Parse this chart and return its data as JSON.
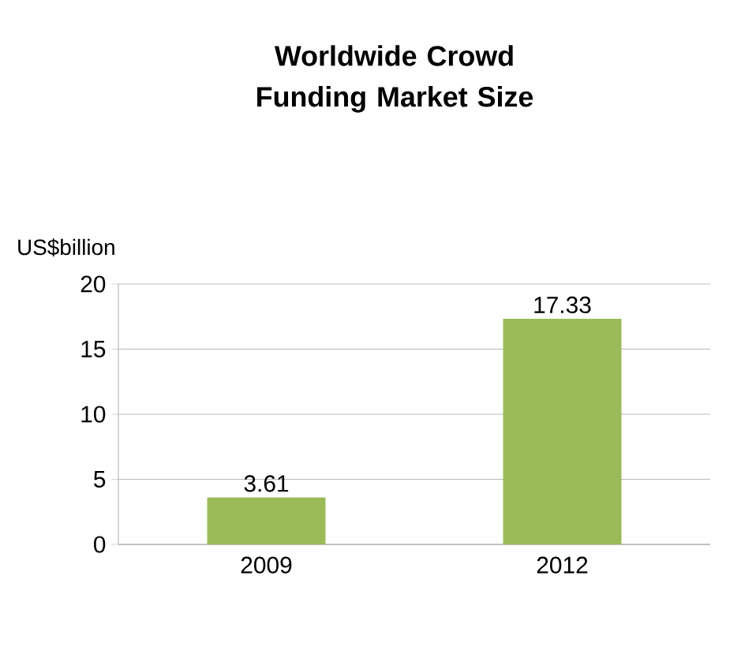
{
  "chart_data": {
    "type": "bar",
    "title": "Worldwide Crowd Funding Market Size",
    "ylabel": "US$billion",
    "categories": [
      "2009",
      "2012"
    ],
    "values": [
      3.61,
      17.33
    ],
    "color": "#9bbb59",
    "ylim": [
      0,
      20
    ],
    "yticks": [
      0,
      5,
      10,
      15,
      20
    ],
    "grid": "y",
    "data_labels": true
  }
}
